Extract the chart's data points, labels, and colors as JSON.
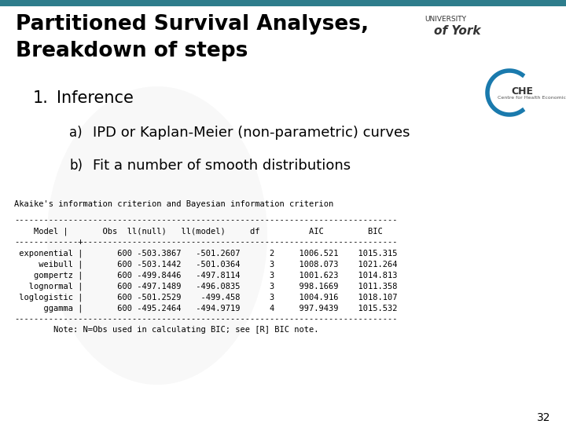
{
  "title_line1": "Partitioned Survival Analyses,",
  "title_line2": "Breakdown of steps",
  "title_fontsize": 19,
  "title_color": "#000000",
  "bg_color": "#ffffff",
  "teal_color": "#2e7d8c",
  "heading1": "Inference",
  "heading1_num": "1.",
  "item_a": "IPD or Kaplan-Meier (non-parametric) curves",
  "item_b": "Fit a number of smooth distributions",
  "label_a": "a)",
  "label_b": "b)",
  "heading_fontsize": 15,
  "item_fontsize": 13,
  "mono_header": "Akaike's information criterion and Bayesian information criterion",
  "table_col_header": "    Model |       Obs  ll(null)   ll(model)     df          AIC         BIC",
  "separator_top": "------------------------------------------------------------------------------",
  "separator_mid": "-------------+----------------------------------------------------------------",
  "separator_bot": "------------------------------------------------------------------------------",
  "table_rows": [
    " exponential |       600 -503.3867   -501.2607      2     1006.521    1015.315",
    "     weibull |       600 -503.1442   -501.0364      3     1008.073    1021.264",
    "    gompertz |       600 -499.8446   -497.8114      3     1001.623    1014.813",
    "   lognormal |       600 -497.1489   -496.0835      3     998.1669    1011.358",
    " loglogistic |       600 -501.2529    -499.458      3     1004.916    1018.107",
    "      ggamma |       600 -495.2464   -494.9719      4     997.9439    1015.532"
  ],
  "note": "Note: N=Obs used in calculating BIC; see [R] BIC note.",
  "page_number": "32",
  "mono_fontsize": 7.5,
  "watermark_alpha": 0.12
}
